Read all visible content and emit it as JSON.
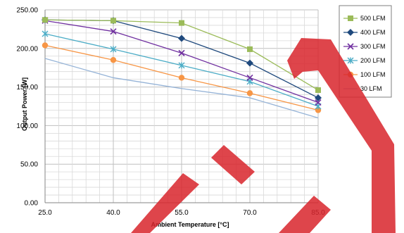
{
  "chart_data": {
    "type": "line",
    "title": "",
    "xlabel": "Ambient Temperature [°C]",
    "ylabel": "Output Power [W]",
    "x": [
      25.0,
      40.0,
      55.0,
      70.0,
      85.0
    ],
    "x_tick_labels": [
      "25.0",
      "40.0",
      "55.0",
      "70.0",
      "85.0"
    ],
    "xlim": [
      25,
      85
    ],
    "ylim": [
      0,
      250
    ],
    "y_ticks": [
      0,
      50,
      100,
      150,
      200,
      250
    ],
    "y_tick_labels": [
      "0.00",
      "50.00",
      "100.00",
      "150.00",
      "200.00",
      "250.00"
    ],
    "grid": true,
    "legend_position": "top-right",
    "series": [
      {
        "name": "500 LFM",
        "values": [
          237,
          236,
          233,
          199,
          146
        ],
        "color": "#9bbb59",
        "marker": "square"
      },
      {
        "name": "400 LFM",
        "values": [
          237,
          236,
          213,
          181,
          136
        ],
        "color": "#1f497d",
        "marker": "diamond"
      },
      {
        "name": "300 LFM",
        "values": [
          236,
          222,
          194,
          162,
          130
        ],
        "color": "#7030a0",
        "marker": "x"
      },
      {
        "name": "200 LFM",
        "values": [
          219,
          199,
          178,
          157,
          125
        ],
        "color": "#4bacc6",
        "marker": "star"
      },
      {
        "name": "100 LFM",
        "values": [
          204,
          185,
          162,
          142,
          120
        ],
        "color": "#f79646",
        "marker": "circle"
      },
      {
        "name": "30 LFM",
        "values": [
          187,
          162,
          148,
          136,
          110
        ],
        "color": "#95b3d7",
        "marker": "none"
      }
    ],
    "watermark_color": "#d9262e"
  }
}
